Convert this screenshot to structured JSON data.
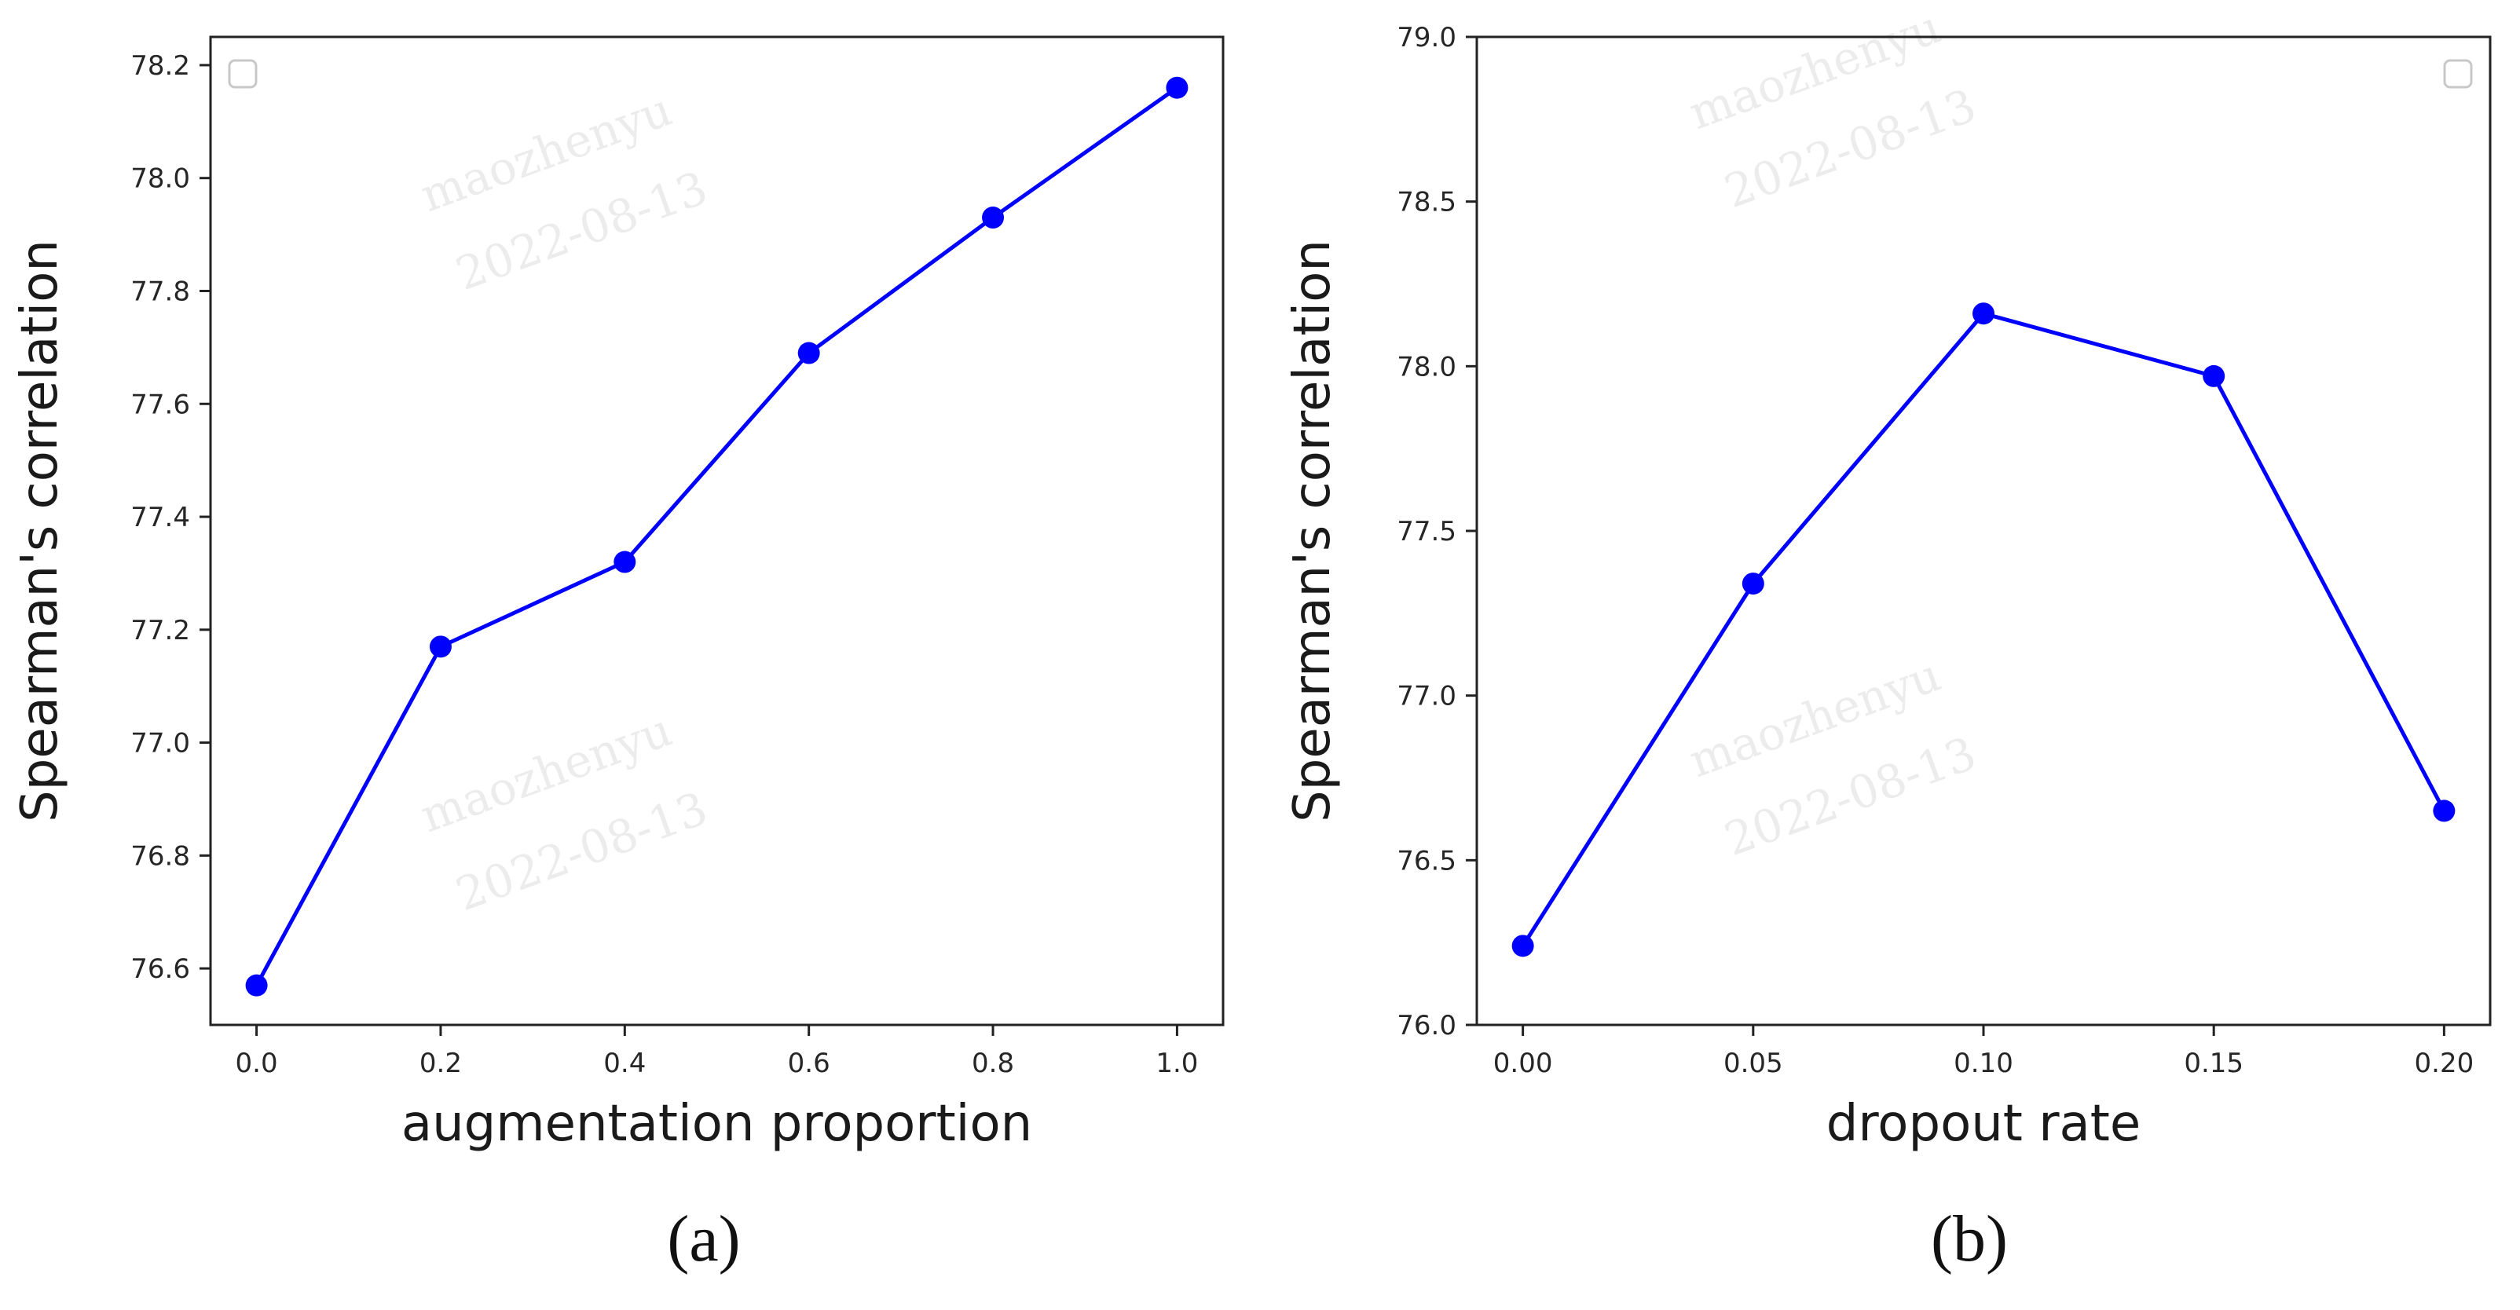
{
  "figure": {
    "watermark_lines": [
      "maozhenyu",
      "2022-08-13"
    ]
  },
  "chart_data": [
    {
      "type": "line",
      "caption": "(a)",
      "xlabel": "augmentation proportion",
      "ylabel": "Spearman's correlation",
      "x": [
        0.0,
        0.2,
        0.4,
        0.6,
        0.8,
        1.0
      ],
      "x_tick_labels": [
        "0.0",
        "0.2",
        "0.4",
        "0.6",
        "0.8",
        "1.0"
      ],
      "y_ticks": [
        76.6,
        76.8,
        77.0,
        77.2,
        77.4,
        77.6,
        77.8,
        78.0,
        78.2
      ],
      "y_tick_labels": [
        "76.6",
        "76.8",
        "77.0",
        "77.2",
        "77.4",
        "77.6",
        "77.8",
        "78.0",
        "78.2"
      ],
      "xlim": [
        -0.05,
        1.05
      ],
      "ylim": [
        76.5,
        78.25
      ],
      "series": [
        {
          "values": [
            76.57,
            77.17,
            77.32,
            77.69,
            77.93,
            78.16
          ],
          "color": "#0000ff"
        }
      ],
      "grid": false,
      "legend": "top-left"
    },
    {
      "type": "line",
      "caption": "(b)",
      "xlabel": "dropout rate",
      "ylabel": "Spearman's correlation",
      "x": [
        0.0,
        0.05,
        0.1,
        0.15,
        0.2
      ],
      "x_tick_labels": [
        "0.00",
        "0.05",
        "0.10",
        "0.15",
        "0.20"
      ],
      "y_ticks": [
        76.0,
        76.5,
        77.0,
        77.5,
        78.0,
        78.5,
        79.0
      ],
      "y_tick_labels": [
        "76.0",
        "76.5",
        "77.0",
        "77.5",
        "78.0",
        "78.5",
        "79.0"
      ],
      "xlim": [
        -0.01,
        0.21
      ],
      "ylim": [
        76.0,
        79.0
      ],
      "series": [
        {
          "values": [
            76.24,
            77.34,
            78.16,
            77.97,
            76.65
          ],
          "color": "#0000ff"
        }
      ],
      "grid": false,
      "legend": "top-right"
    }
  ]
}
